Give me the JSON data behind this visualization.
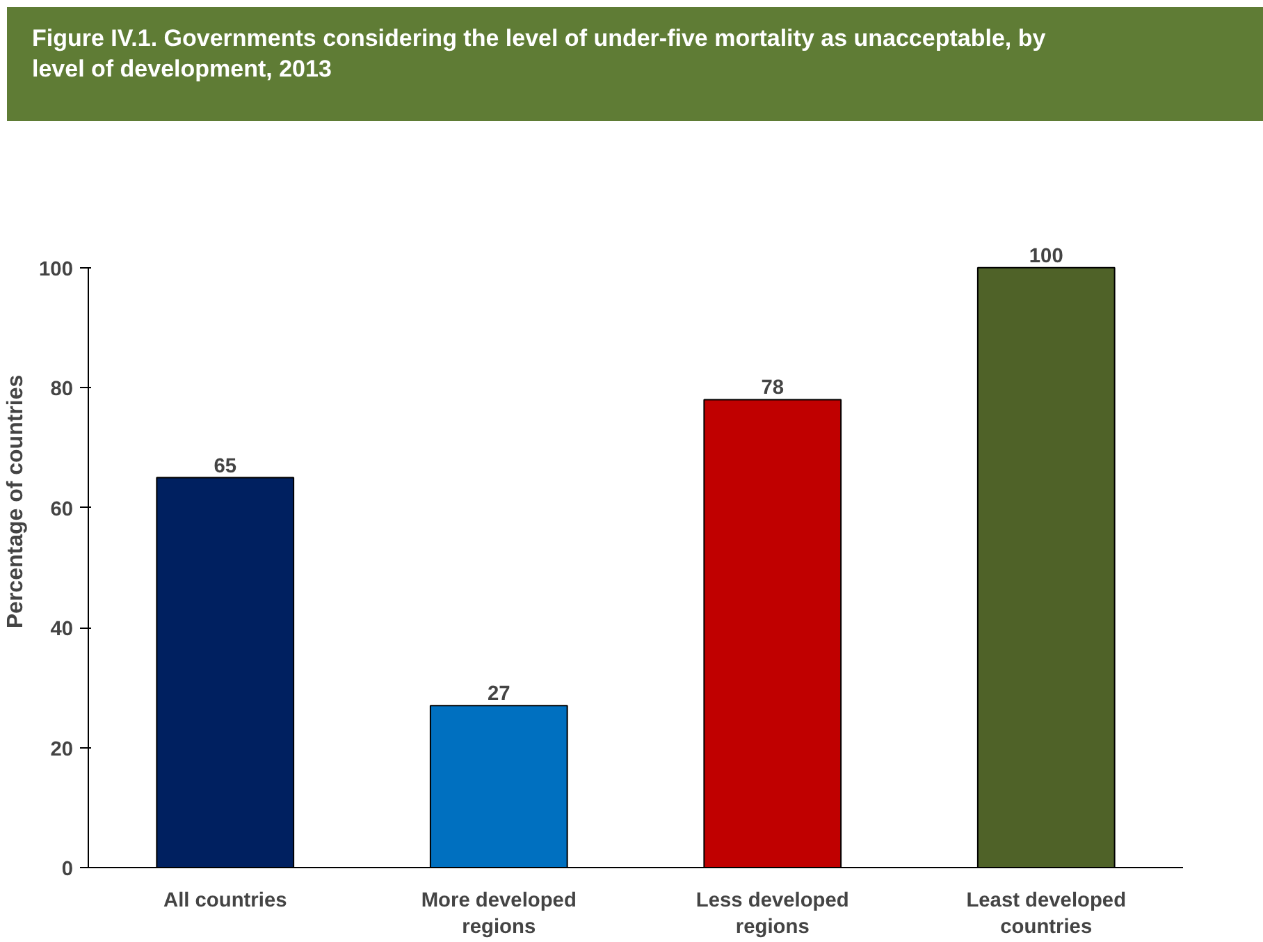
{
  "chart_data": {
    "type": "bar",
    "title": "Figure IV.1. Governments considering the level of under-five mortality as unacceptable, by level of development, 2013",
    "ylabel": "Percentage of countries",
    "categories": [
      "All countries",
      "More developed regions",
      "Less developed regions",
      "Least developed countries"
    ],
    "values": [
      65,
      27,
      78,
      100
    ],
    "colors": [
      "#002060",
      "#0070c0",
      "#c00000",
      "#4f6228"
    ],
    "ylim": [
      0,
      100
    ],
    "yticks": [
      0,
      20,
      40,
      60,
      80,
      100
    ],
    "data_labels": true,
    "grid": false
  }
}
